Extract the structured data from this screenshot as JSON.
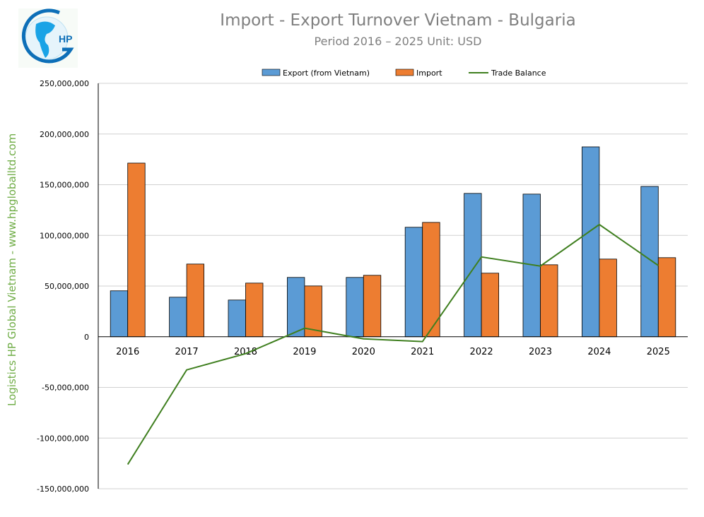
{
  "chart_data": {
    "type": "bar",
    "title": "Import - Export Turnover Vietnam - Bulgaria",
    "subtitle": "Period 2016 – 2025  Unit: USD",
    "side_label": "Logistics HP Global Vietnam - www.hpgloballtd.com",
    "logo_text": "HP",
    "categories": [
      "2016",
      "2017",
      "2018",
      "2019",
      "2020",
      "2021",
      "2022",
      "2023",
      "2024",
      "2025"
    ],
    "series": [
      {
        "name": "Export (from Vietnam)",
        "type": "bar",
        "color": "#5b9bd5",
        "values": [
          45300000,
          39000000,
          36200000,
          58500000,
          58500000,
          108000000,
          141400000,
          140700000,
          187300000,
          148300000
        ]
      },
      {
        "name": "Import",
        "type": "bar",
        "color": "#ed7d31",
        "values": [
          171300000,
          71700000,
          52900000,
          50100000,
          60600000,
          112800000,
          62700000,
          71000000,
          76600000,
          78000000
        ]
      },
      {
        "name": "Trade Balance",
        "type": "line",
        "color": "#3f7f1f",
        "values": [
          -126000000,
          -32700000,
          -16700000,
          8400000,
          -2100000,
          -4800000,
          78700000,
          69700000,
          110700000,
          70300000
        ]
      }
    ],
    "ylim": [
      -150000000,
      250000000
    ],
    "yticks": [
      "250,000,000",
      "200,000,000",
      "150,000,000",
      "100,000,000",
      "50,000,000",
      "0",
      "-50,000,000",
      "-100,000,000",
      "-150,000,000"
    ],
    "grid": true,
    "legend_position": "top"
  }
}
